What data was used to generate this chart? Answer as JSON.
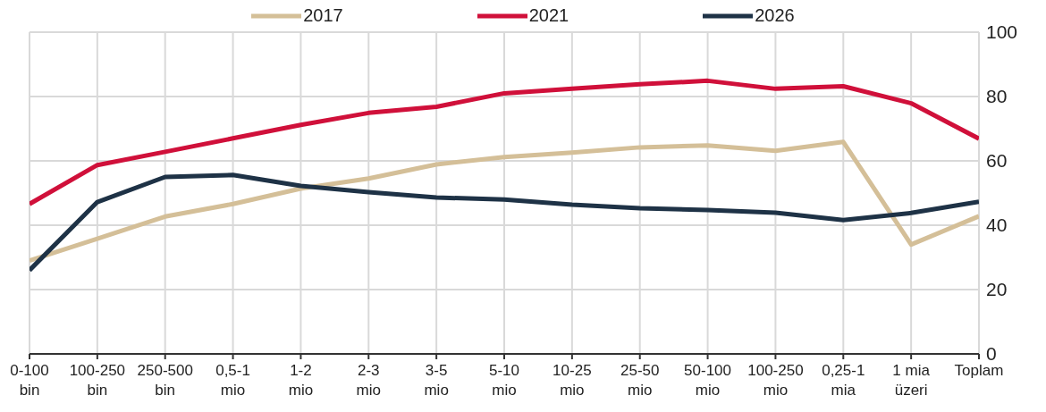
{
  "chart_data": {
    "type": "line",
    "categories": [
      "0-100 bin",
      "100-250 bin",
      "250-500 bin",
      "0,5-1 mio",
      "1-2 mio",
      "2-3 mio",
      "3-5 mio",
      "5-10 mio",
      "10-25 mio",
      "25-50 mio",
      "50-100 mio",
      "100-250 mio",
      "0,25-1 mia",
      "1 mia üzeri",
      "Toplam"
    ],
    "series": [
      {
        "name": "2017",
        "color": "#d4bf98",
        "values": [
          29,
          35.8,
          42.7,
          46.6,
          51.4,
          54.5,
          58.9,
          61.2,
          62.6,
          64.2,
          64.8,
          63.1,
          65.9,
          34,
          42.8
        ]
      },
      {
        "name": "2021",
        "color": "#d0103a",
        "values": [
          46.6,
          58.7,
          62.8,
          67,
          71.2,
          74.9,
          76.8,
          81,
          82.4,
          83.8,
          84.9,
          82.4,
          83.2,
          77.9,
          66.9
        ]
      },
      {
        "name": "2026",
        "color": "#1e3246",
        "values": [
          26,
          47.2,
          55,
          55.6,
          52.2,
          50.3,
          48.6,
          48,
          46.4,
          45.3,
          44.7,
          43.9,
          41.6,
          43.8,
          47.3
        ]
      }
    ],
    "ylim": [
      0,
      100
    ],
    "yticks": [
      0,
      20,
      40,
      60,
      80,
      100
    ],
    "grid": true,
    "legend": "top",
    "marker": "none",
    "line_style": "solid"
  }
}
